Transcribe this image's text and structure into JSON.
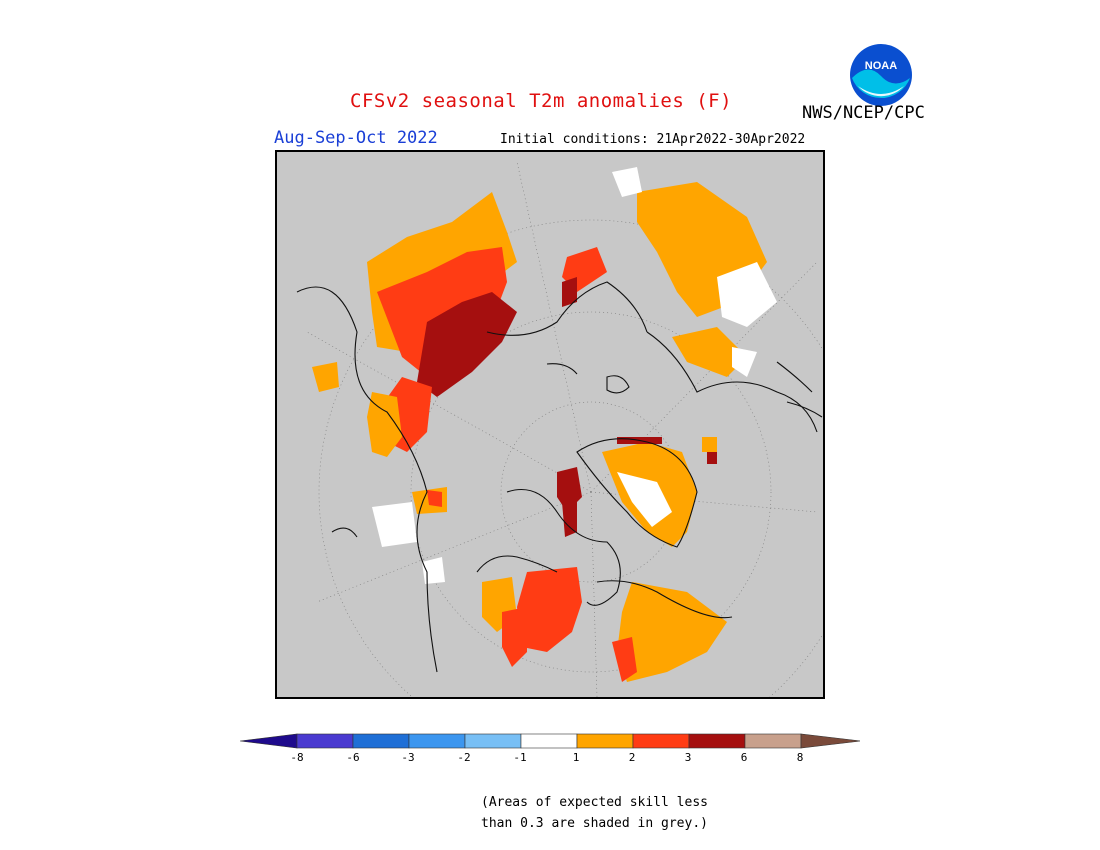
{
  "header": {
    "title": "CFSv2 seasonal T2m anomalies (F)",
    "agency": "NWS/NCEP/CPC",
    "season": "Aug-Sep-Oct 2022",
    "initial_conditions": "Initial conditions: 21Apr2022-30Apr2022",
    "logo_text": "NOAA"
  },
  "map": {
    "projection": "north polar stereographic",
    "grey_meaning": "skill less than 0.3"
  },
  "colorbar": {
    "ticks": [
      "-8",
      "-6",
      "-3",
      "-2",
      "-1",
      "1",
      "2",
      "3",
      "6",
      "8"
    ],
    "colors": [
      "#1e0a8c",
      "#4a3ad0",
      "#1f6fd6",
      "#3c96ef",
      "#78bff5",
      "#ffffff",
      "#ffa500",
      "#ff3c14",
      "#a50f0f",
      "#c8a08c",
      "#7a4a3a"
    ]
  },
  "footnote": {
    "line1": "(Areas of expected skill less",
    "line2": "than 0.3 are shaded in grey.)"
  },
  "colors": {
    "title": "#e01010",
    "season": "#1a3fd6",
    "skill_grey": "#c8c8c8"
  }
}
